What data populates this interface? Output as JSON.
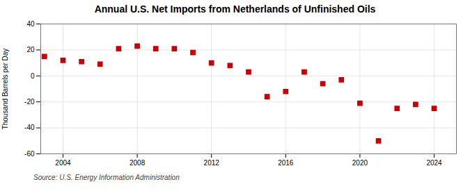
{
  "chart_data": {
    "type": "scatter",
    "title": "Annual U.S. Net Imports from Netherlands of Unfinished Oils",
    "ylabel": "Thousand Barrels per Day",
    "source": "Source: U.S. Energy Information Administration",
    "x": [
      2003,
      2004,
      2005,
      2006,
      2007,
      2008,
      2009,
      2010,
      2011,
      2012,
      2013,
      2014,
      2015,
      2016,
      2017,
      2018,
      2019,
      2020,
      2021,
      2022,
      2023,
      2024
    ],
    "values": [
      15,
      12,
      11,
      9,
      21,
      23,
      21,
      21,
      18,
      10,
      8,
      3,
      -16,
      -12,
      3,
      -6,
      -3,
      -21,
      -50,
      -25,
      -22,
      -25
    ],
    "color": "#cc0000",
    "marker": "square",
    "xlim": [
      2002.8,
      2025.2
    ],
    "xticks": [
      2004,
      2008,
      2012,
      2016,
      2020,
      2024
    ],
    "ylim": [
      -60,
      40
    ],
    "yticks": [
      -60,
      -40,
      -20,
      0,
      20,
      40
    ],
    "grid": true
  }
}
